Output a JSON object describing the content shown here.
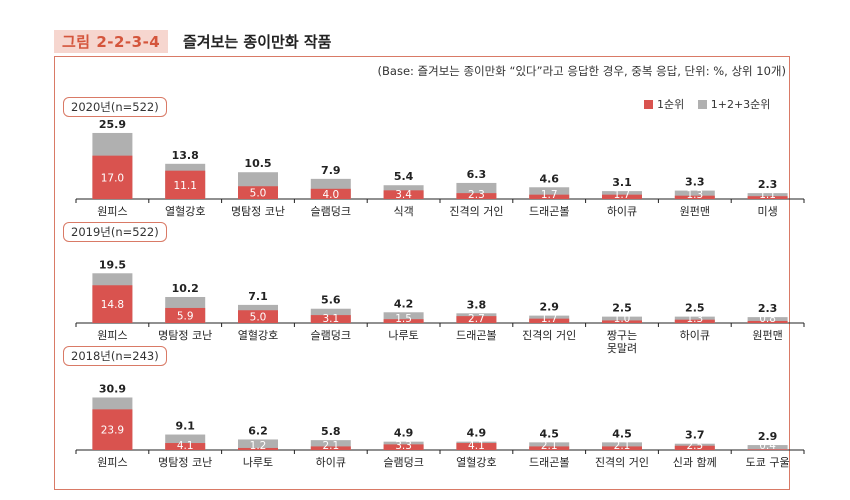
{
  "figure": {
    "label": "그림 2-2-3-4",
    "title": "즐겨보는 종이만화 작품",
    "base_note": "(Base: 즐겨보는 종이만화 “있다”라고 응답한 경우, 중복 응답, 단위: %, 상위 10개)"
  },
  "colors": {
    "first": "#d9534f",
    "total": "#b0b0b0",
    "accent": "#d97a66"
  },
  "legend": {
    "first_label": "1순위",
    "total_label": "1+2+3순위"
  },
  "chart_data": [
    {
      "type": "bar",
      "title": "2020년(n=522)",
      "categories": [
        "원피스",
        "열혈강호",
        "명탐정 코난",
        "슬램덩크",
        "식객",
        "진격의 거인",
        "드래곤볼",
        "하이큐",
        "원펀맨",
        "미생"
      ],
      "series": [
        {
          "name": "1순위",
          "values": [
            17.0,
            11.1,
            5.0,
            4.0,
            3.4,
            2.3,
            1.7,
            1.7,
            1.3,
            1.1
          ]
        },
        {
          "name": "1+2+3순위",
          "values": [
            25.9,
            13.8,
            10.5,
            7.9,
            5.4,
            6.3,
            4.6,
            3.1,
            3.3,
            2.3
          ]
        }
      ],
      "stacking": "overlay"
    },
    {
      "type": "bar",
      "title": "2019년(n=522)",
      "categories": [
        "원피스",
        "명탐정 코난",
        "열혈강호",
        "슬램덩크",
        "나루토",
        "드래곤볼",
        "진격의 거인",
        "짱구는 못말려",
        "하이큐",
        "원펀맨"
      ],
      "series": [
        {
          "name": "1순위",
          "values": [
            14.8,
            5.9,
            5.0,
            3.1,
            1.5,
            2.7,
            1.7,
            1.0,
            1.3,
            0.8
          ]
        },
        {
          "name": "1+2+3순위",
          "values": [
            19.5,
            10.2,
            7.1,
            5.6,
            4.2,
            3.8,
            2.9,
            2.5,
            2.5,
            2.3
          ]
        }
      ],
      "stacking": "overlay"
    },
    {
      "type": "bar",
      "title": "2018년(n=243)",
      "categories": [
        "원피스",
        "명탐정 코난",
        "나루토",
        "하이큐",
        "슬램덩크",
        "열혈강호",
        "드래곤볼",
        "진격의 거인",
        "신과 함께",
        "도쿄 구울"
      ],
      "series": [
        {
          "name": "1순위",
          "values": [
            23.9,
            4.1,
            1.2,
            2.1,
            3.3,
            4.1,
            2.1,
            2.1,
            2.5,
            0.4
          ]
        },
        {
          "name": "1+2+3순위",
          "values": [
            30.9,
            9.1,
            6.2,
            5.8,
            4.9,
            4.9,
            4.5,
            4.5,
            3.7,
            2.9
          ]
        }
      ],
      "stacking": "overlay"
    }
  ]
}
